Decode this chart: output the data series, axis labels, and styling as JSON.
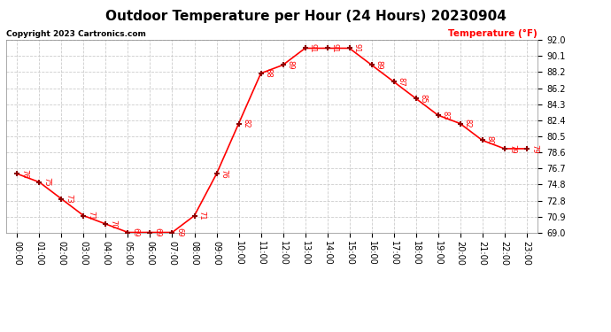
{
  "title": "Outdoor Temperature per Hour (24 Hours) 20230904",
  "copyright": "Copyright 2023 Cartronics.com",
  "ylabel": "Temperature (°F)",
  "hours": [
    0,
    1,
    2,
    3,
    4,
    5,
    6,
    7,
    8,
    9,
    10,
    11,
    12,
    13,
    14,
    15,
    16,
    17,
    18,
    19,
    20,
    21,
    22,
    23
  ],
  "temps": [
    76,
    75,
    73,
    71,
    70,
    69,
    69,
    69,
    71,
    76,
    82,
    88,
    89,
    91,
    91,
    91,
    89,
    87,
    85,
    83,
    82,
    80,
    79,
    79
  ],
  "xlabels": [
    "00:00",
    "01:00",
    "02:00",
    "03:00",
    "04:00",
    "05:00",
    "06:00",
    "07:00",
    "08:00",
    "09:00",
    "10:00",
    "11:00",
    "12:00",
    "13:00",
    "14:00",
    "15:00",
    "16:00",
    "17:00",
    "18:00",
    "19:00",
    "20:00",
    "21:00",
    "22:00",
    "23:00"
  ],
  "ylim": [
    69.0,
    92.0
  ],
  "yticks": [
    69.0,
    70.9,
    72.8,
    74.8,
    76.7,
    78.6,
    80.5,
    82.4,
    84.3,
    86.2,
    88.2,
    90.1,
    92.0
  ],
  "line_color": "red",
  "marker_color": "darkred",
  "bg_color": "white",
  "grid_color": "#cccccc",
  "title_color": "black",
  "copyright_color": "black",
  "ylabel_color": "red",
  "title_fontsize": 11,
  "copyright_fontsize": 6.5,
  "ylabel_fontsize": 7.5,
  "tick_fontsize": 7,
  "annot_fontsize": 6
}
